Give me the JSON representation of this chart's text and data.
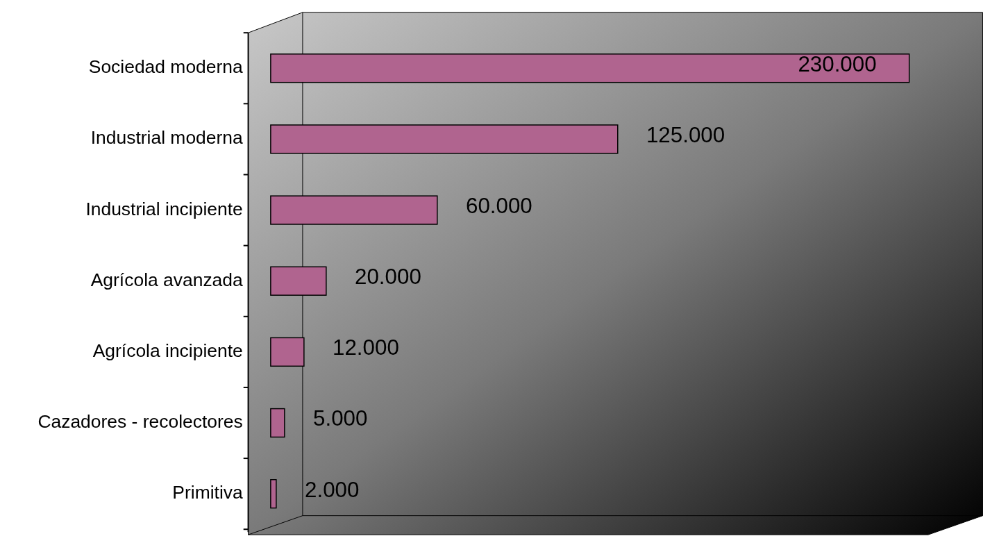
{
  "chart_data": {
    "type": "bar",
    "orientation": "horizontal",
    "categories": [
      "Sociedad moderna",
      "Industrial moderna",
      "Industrial incipiente",
      "Agrícola avanzada",
      "Agrícola incipiente",
      "Cazadores - recolectores",
      "Primitiva"
    ],
    "values": [
      230000,
      125000,
      60000,
      20000,
      12000,
      5000,
      2000
    ],
    "value_labels": [
      "230.000",
      "125.000",
      "60.000",
      "20.000",
      "12.000",
      "5.000",
      "2.000"
    ],
    "color": "#b0648f",
    "grid": false
  }
}
